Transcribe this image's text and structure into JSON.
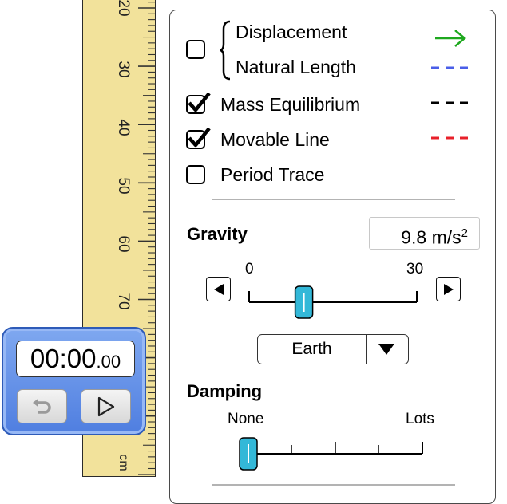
{
  "ruler": {
    "labels": [
      "20",
      "30",
      "40",
      "50",
      "60",
      "70",
      "cm"
    ]
  },
  "stopwatch": {
    "time_main": "00:00",
    "time_fraction": ".00"
  },
  "panel": {
    "displacement_label": "Displacement",
    "natural_length_label": "Natural Length",
    "mass_equilibrium_label": "Mass Equilibrium",
    "movable_line_label": "Movable Line",
    "period_trace_label": "Period Trace",
    "checkboxes": {
      "displacement_natural_length": false,
      "mass_equilibrium": true,
      "movable_line": true,
      "period_trace": false
    },
    "colors": {
      "displacement_arrow": "#1ea81e",
      "natural_length": "#4a5ee8",
      "mass_equilibrium": "#000000",
      "movable_line": "#e8202a"
    },
    "gravity": {
      "title": "Gravity",
      "value_text": "9.8 m/s",
      "exponent": "2",
      "min_label": "0",
      "max_label": "30",
      "value": 9.8,
      "min": 0,
      "max": 30,
      "selected_planet": "Earth"
    },
    "damping": {
      "title": "Damping",
      "min_label": "None",
      "max_label": "Lots",
      "value_fraction": 0
    }
  }
}
